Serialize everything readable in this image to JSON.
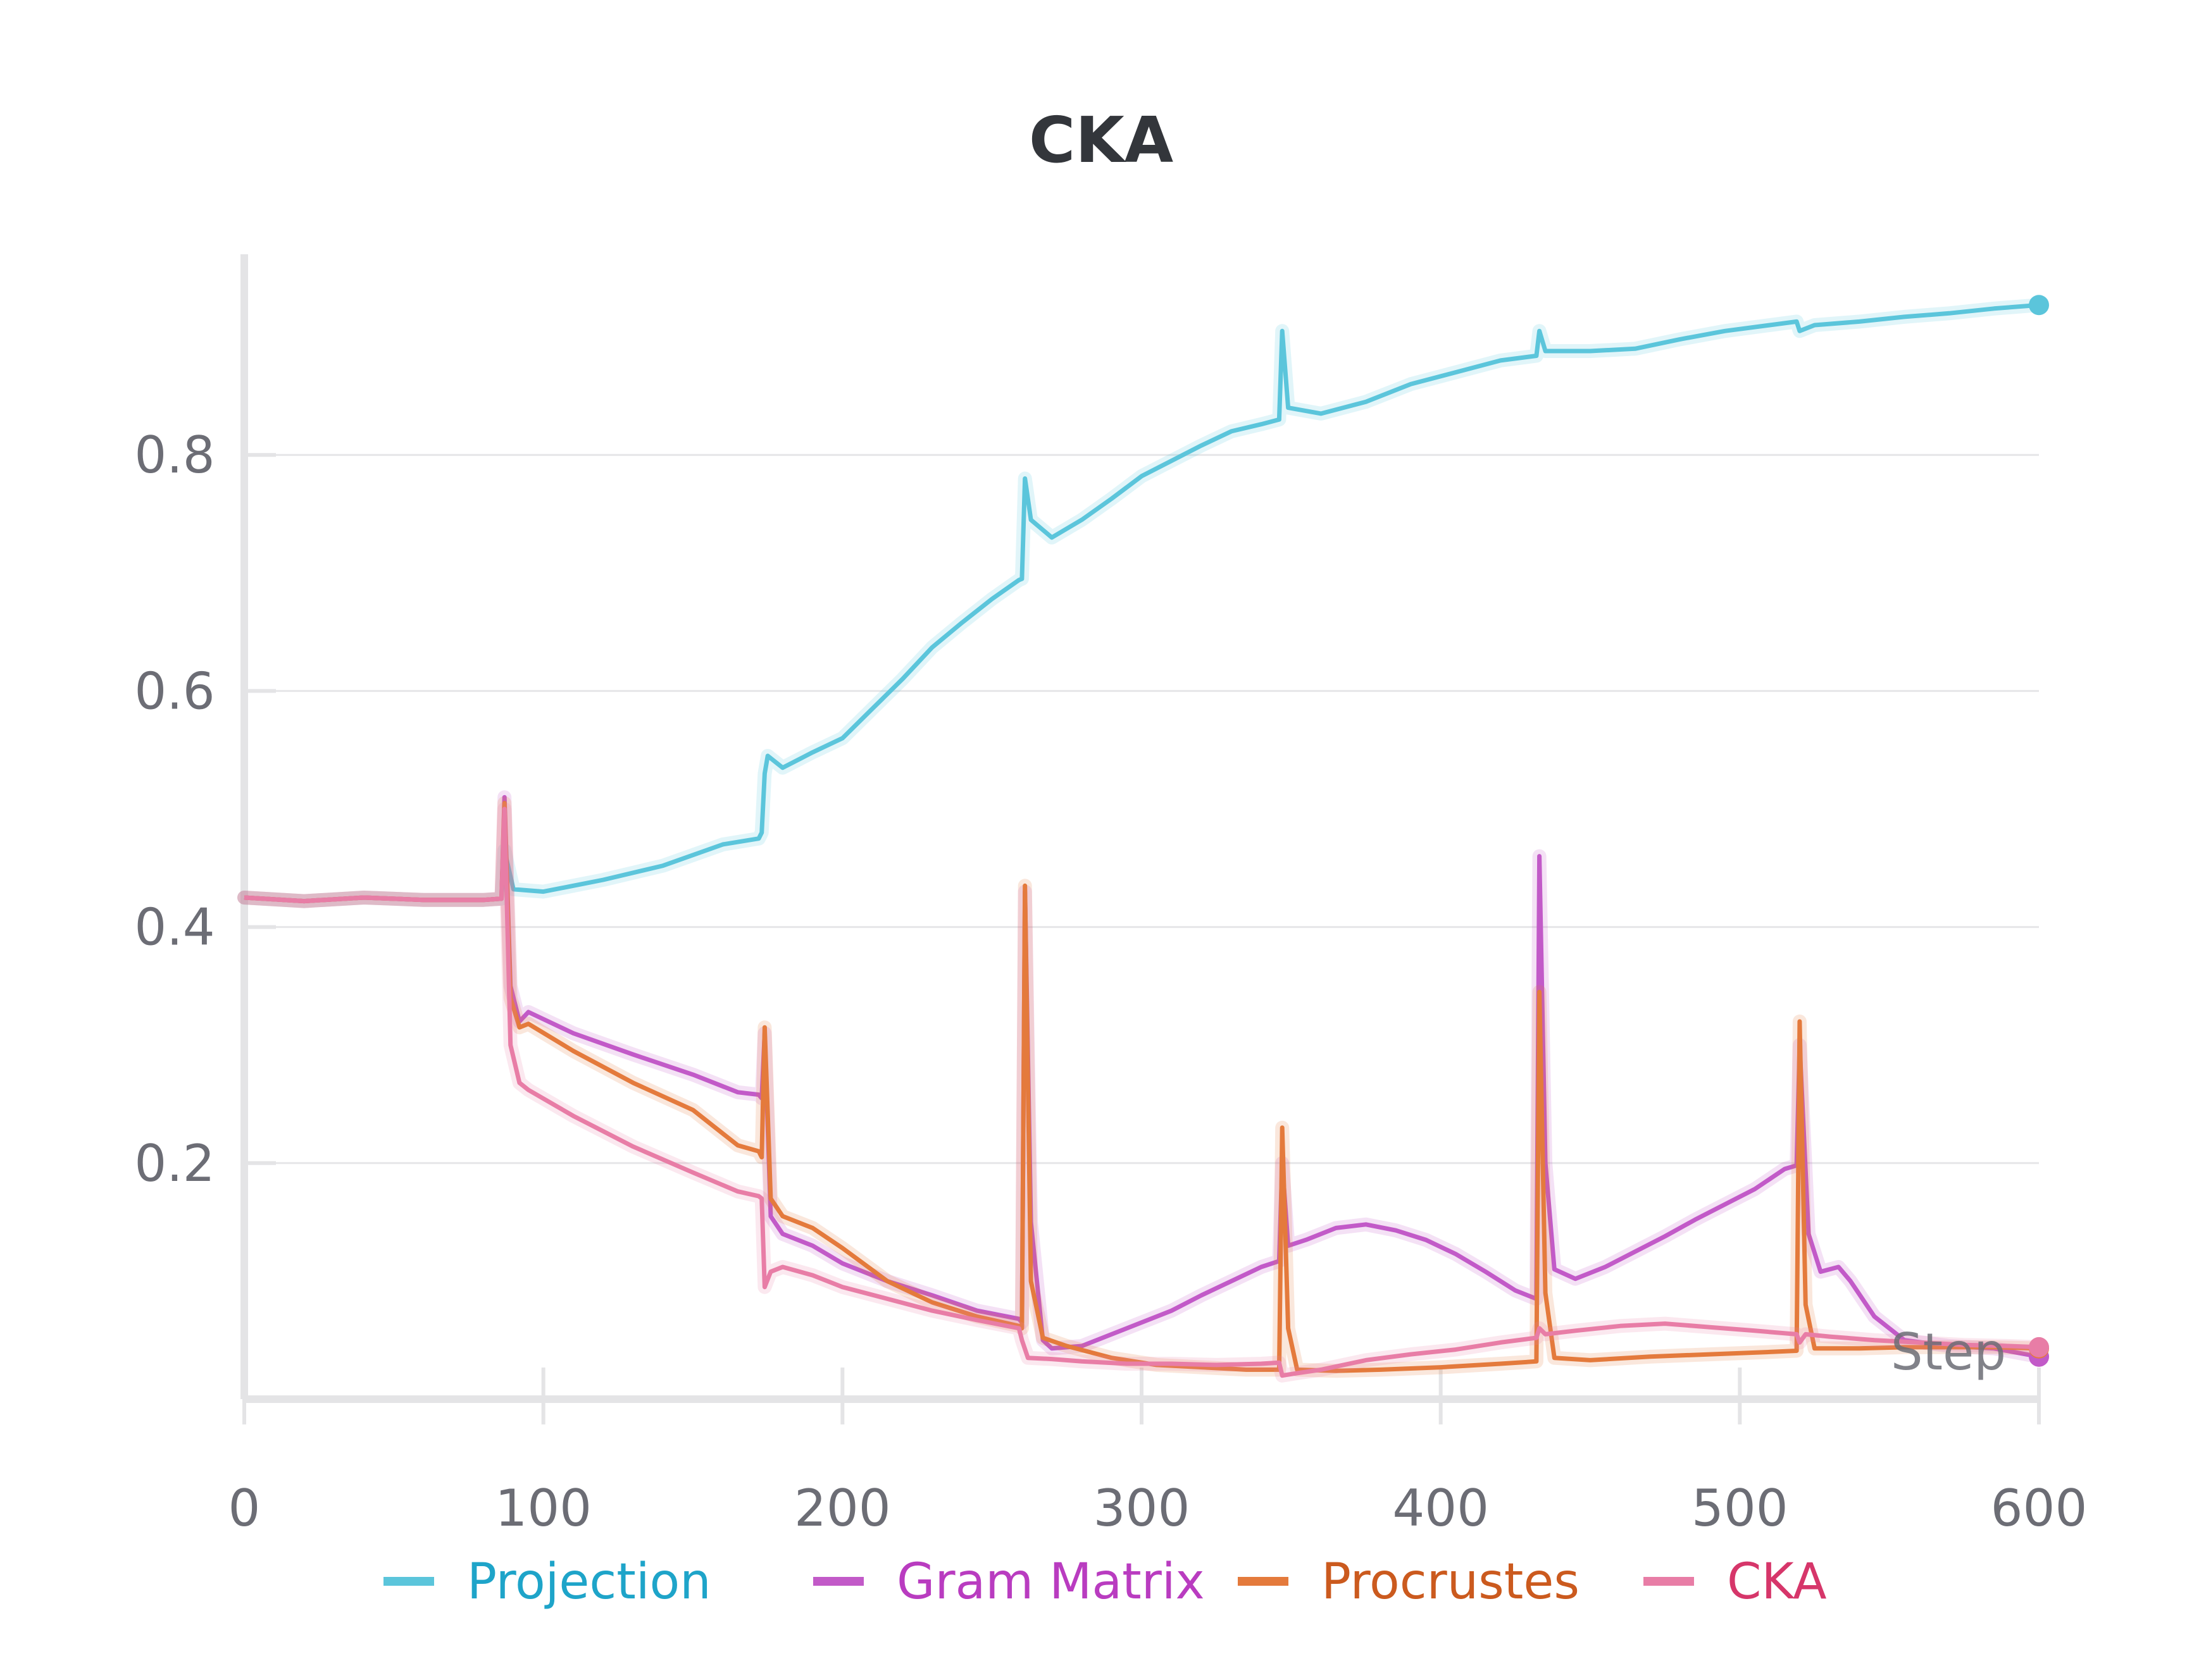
{
  "chart_data": {
    "type": "line",
    "title": "CKA",
    "xlabel": "Step",
    "ylabel": "",
    "xlim": [
      0,
      600
    ],
    "ylim": [
      0.0,
      0.97
    ],
    "xticks": [
      0,
      100,
      200,
      300,
      400,
      500,
      600
    ],
    "yticks": [
      0.2,
      0.4,
      0.6,
      0.8
    ],
    "xtick_labels": [
      "0",
      "100",
      "200",
      "300",
      "400",
      "500",
      "600"
    ],
    "ytick_labels": [
      "0.2",
      "0.4",
      "0.6",
      "0.8"
    ],
    "grid": true,
    "legend_position": "bottom",
    "series": [
      {
        "name": "Projection",
        "color": "#5bc5db",
        "text_color": "#1ea4c9",
        "points": [
          [
            0,
            0.425
          ],
          [
            20,
            0.422
          ],
          [
            40,
            0.425
          ],
          [
            60,
            0.423
          ],
          [
            80,
            0.423
          ],
          [
            86,
            0.424
          ],
          [
            87,
            0.465
          ],
          [
            90,
            0.432
          ],
          [
            100,
            0.43
          ],
          [
            120,
            0.44
          ],
          [
            140,
            0.452
          ],
          [
            160,
            0.47
          ],
          [
            172,
            0.475
          ],
          [
            173,
            0.48
          ],
          [
            174,
            0.53
          ],
          [
            175,
            0.545
          ],
          [
            180,
            0.535
          ],
          [
            190,
            0.548
          ],
          [
            200,
            0.56
          ],
          [
            210,
            0.585
          ],
          [
            220,
            0.61
          ],
          [
            230,
            0.637
          ],
          [
            240,
            0.658
          ],
          [
            250,
            0.678
          ],
          [
            259,
            0.694
          ],
          [
            260,
            0.695
          ],
          [
            261,
            0.78
          ],
          [
            263,
            0.745
          ],
          [
            270,
            0.73
          ],
          [
            280,
            0.745
          ],
          [
            290,
            0.763
          ],
          [
            300,
            0.782
          ],
          [
            310,
            0.795
          ],
          [
            320,
            0.808
          ],
          [
            330,
            0.82
          ],
          [
            340,
            0.826
          ],
          [
            346,
            0.83
          ],
          [
            347,
            0.905
          ],
          [
            349,
            0.84
          ],
          [
            360,
            0.835
          ],
          [
            375,
            0.845
          ],
          [
            390,
            0.86
          ],
          [
            405,
            0.87
          ],
          [
            420,
            0.88
          ],
          [
            432,
            0.884
          ],
          [
            433,
            0.905
          ],
          [
            435,
            0.888
          ],
          [
            450,
            0.888
          ],
          [
            465,
            0.89
          ],
          [
            480,
            0.898
          ],
          [
            495,
            0.905
          ],
          [
            510,
            0.91
          ],
          [
            519,
            0.913
          ],
          [
            520,
            0.905
          ],
          [
            525,
            0.91
          ],
          [
            540,
            0.913
          ],
          [
            555,
            0.917
          ],
          [
            570,
            0.92
          ],
          [
            585,
            0.924
          ],
          [
            600,
            0.927
          ]
        ]
      },
      {
        "name": "Gram Matrix",
        "color": "#c25ac8",
        "text_color": "#b93cc0",
        "points": [
          [
            0,
            0.425
          ],
          [
            20,
            0.422
          ],
          [
            40,
            0.425
          ],
          [
            60,
            0.423
          ],
          [
            80,
            0.423
          ],
          [
            86,
            0.424
          ],
          [
            87,
            0.51
          ],
          [
            89,
            0.35
          ],
          [
            92,
            0.32
          ],
          [
            95,
            0.328
          ],
          [
            110,
            0.31
          ],
          [
            130,
            0.292
          ],
          [
            150,
            0.275
          ],
          [
            165,
            0.26
          ],
          [
            172,
            0.258
          ],
          [
            173,
            0.255
          ],
          [
            174,
            0.31
          ],
          [
            176,
            0.155
          ],
          [
            180,
            0.14
          ],
          [
            190,
            0.13
          ],
          [
            200,
            0.115
          ],
          [
            215,
            0.1
          ],
          [
            230,
            0.088
          ],
          [
            245,
            0.075
          ],
          [
            259,
            0.068
          ],
          [
            260,
            0.065
          ],
          [
            261,
            0.43
          ],
          [
            263,
            0.15
          ],
          [
            267,
            0.05
          ],
          [
            270,
            0.043
          ],
          [
            280,
            0.045
          ],
          [
            290,
            0.055
          ],
          [
            300,
            0.065
          ],
          [
            310,
            0.075
          ],
          [
            320,
            0.088
          ],
          [
            330,
            0.1
          ],
          [
            340,
            0.112
          ],
          [
            346,
            0.117
          ],
          [
            347,
            0.2
          ],
          [
            349,
            0.13
          ],
          [
            355,
            0.135
          ],
          [
            365,
            0.145
          ],
          [
            375,
            0.148
          ],
          [
            385,
            0.143
          ],
          [
            395,
            0.135
          ],
          [
            405,
            0.123
          ],
          [
            415,
            0.108
          ],
          [
            425,
            0.092
          ],
          [
            432,
            0.085
          ],
          [
            433,
            0.46
          ],
          [
            435,
            0.2
          ],
          [
            438,
            0.11
          ],
          [
            445,
            0.102
          ],
          [
            455,
            0.112
          ],
          [
            465,
            0.125
          ],
          [
            475,
            0.138
          ],
          [
            485,
            0.152
          ],
          [
            495,
            0.165
          ],
          [
            505,
            0.178
          ],
          [
            515,
            0.195
          ],
          [
            519,
            0.198
          ],
          [
            520,
            0.3
          ],
          [
            523,
            0.14
          ],
          [
            527,
            0.108
          ],
          [
            533,
            0.112
          ],
          [
            537,
            0.1
          ],
          [
            545,
            0.07
          ],
          [
            555,
            0.05
          ],
          [
            570,
            0.045
          ],
          [
            585,
            0.043
          ],
          [
            600,
            0.036
          ]
        ]
      },
      {
        "name": "Procrustes",
        "color": "#e47a3c",
        "text_color": "#cb5a1e",
        "points": [
          [
            0,
            0.425
          ],
          [
            20,
            0.422
          ],
          [
            40,
            0.425
          ],
          [
            60,
            0.423
          ],
          [
            80,
            0.423
          ],
          [
            86,
            0.424
          ],
          [
            87,
            0.505
          ],
          [
            89,
            0.34
          ],
          [
            92,
            0.315
          ],
          [
            95,
            0.318
          ],
          [
            110,
            0.295
          ],
          [
            130,
            0.268
          ],
          [
            150,
            0.245
          ],
          [
            165,
            0.215
          ],
          [
            172,
            0.21
          ],
          [
            173,
            0.205
          ],
          [
            174,
            0.315
          ],
          [
            176,
            0.17
          ],
          [
            180,
            0.155
          ],
          [
            190,
            0.145
          ],
          [
            200,
            0.128
          ],
          [
            215,
            0.1
          ],
          [
            230,
            0.082
          ],
          [
            245,
            0.07
          ],
          [
            259,
            0.062
          ],
          [
            260,
            0.06
          ],
          [
            261,
            0.435
          ],
          [
            263,
            0.1
          ],
          [
            267,
            0.052
          ],
          [
            275,
            0.045
          ],
          [
            290,
            0.035
          ],
          [
            305,
            0.029
          ],
          [
            320,
            0.027
          ],
          [
            335,
            0.025
          ],
          [
            346,
            0.025
          ],
          [
            347,
            0.23
          ],
          [
            349,
            0.06
          ],
          [
            352,
            0.025
          ],
          [
            365,
            0.024
          ],
          [
            380,
            0.025
          ],
          [
            400,
            0.027
          ],
          [
            420,
            0.03
          ],
          [
            432,
            0.032
          ],
          [
            433,
            0.345
          ],
          [
            435,
            0.09
          ],
          [
            438,
            0.035
          ],
          [
            450,
            0.033
          ],
          [
            470,
            0.036
          ],
          [
            490,
            0.038
          ],
          [
            510,
            0.04
          ],
          [
            519,
            0.041
          ],
          [
            520,
            0.32
          ],
          [
            522,
            0.08
          ],
          [
            525,
            0.043
          ],
          [
            540,
            0.043
          ],
          [
            555,
            0.044
          ],
          [
            570,
            0.044
          ],
          [
            585,
            0.044
          ],
          [
            600,
            0.043
          ]
        ]
      },
      {
        "name": "CKA",
        "color": "#e87da6",
        "text_color": "#d6366a",
        "points": [
          [
            0,
            0.425
          ],
          [
            20,
            0.422
          ],
          [
            40,
            0.425
          ],
          [
            60,
            0.423
          ],
          [
            80,
            0.423
          ],
          [
            86,
            0.424
          ],
          [
            87,
            0.5
          ],
          [
            89,
            0.3
          ],
          [
            92,
            0.268
          ],
          [
            95,
            0.262
          ],
          [
            110,
            0.24
          ],
          [
            130,
            0.214
          ],
          [
            150,
            0.192
          ],
          [
            165,
            0.176
          ],
          [
            172,
            0.172
          ],
          [
            173,
            0.17
          ],
          [
            174,
            0.095
          ],
          [
            176,
            0.108
          ],
          [
            180,
            0.112
          ],
          [
            190,
            0.105
          ],
          [
            200,
            0.095
          ],
          [
            215,
            0.085
          ],
          [
            230,
            0.075
          ],
          [
            245,
            0.067
          ],
          [
            259,
            0.06
          ],
          [
            260,
            0.05
          ],
          [
            262,
            0.035
          ],
          [
            270,
            0.034
          ],
          [
            280,
            0.032
          ],
          [
            295,
            0.03
          ],
          [
            310,
            0.03
          ],
          [
            325,
            0.029
          ],
          [
            340,
            0.03
          ],
          [
            346,
            0.031
          ],
          [
            347,
            0.02
          ],
          [
            352,
            0.022
          ],
          [
            360,
            0.025
          ],
          [
            375,
            0.033
          ],
          [
            390,
            0.038
          ],
          [
            405,
            0.042
          ],
          [
            420,
            0.048
          ],
          [
            432,
            0.052
          ],
          [
            433,
            0.06
          ],
          [
            435,
            0.055
          ],
          [
            445,
            0.058
          ],
          [
            460,
            0.062
          ],
          [
            475,
            0.064
          ],
          [
            490,
            0.061
          ],
          [
            505,
            0.058
          ],
          [
            519,
            0.055
          ],
          [
            520,
            0.048
          ],
          [
            522,
            0.055
          ],
          [
            530,
            0.053
          ],
          [
            545,
            0.05
          ],
          [
            560,
            0.048
          ],
          [
            575,
            0.046
          ],
          [
            590,
            0.045
          ],
          [
            600,
            0.044
          ]
        ]
      }
    ]
  }
}
